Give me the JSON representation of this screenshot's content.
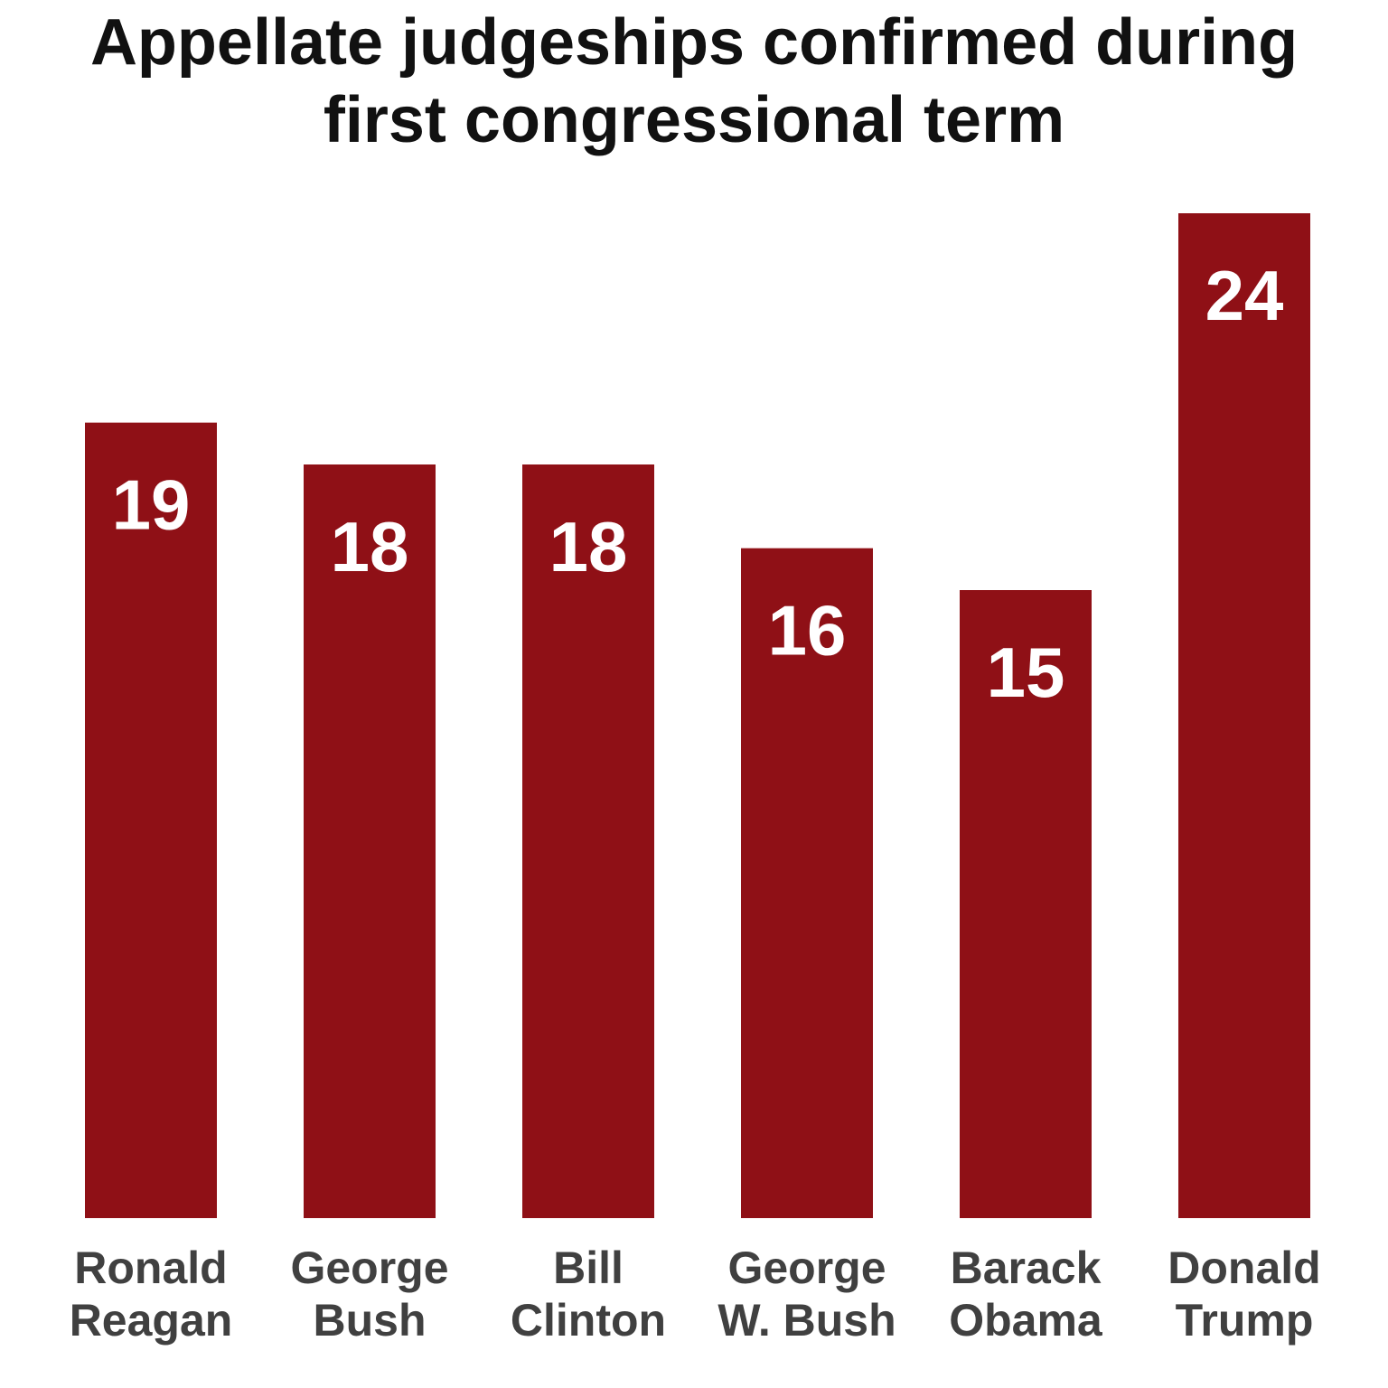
{
  "chart_data": {
    "type": "bar",
    "title_lines": [
      "Appellate judgeships confirmed during",
      "first congressional term"
    ],
    "categories": [
      [
        "Ronald",
        "Reagan"
      ],
      [
        "George",
        "Bush"
      ],
      [
        "Bill",
        "Clinton"
      ],
      [
        "George",
        "W. Bush"
      ],
      [
        "Barack",
        "Obama"
      ],
      [
        "Donald",
        "Trump"
      ]
    ],
    "values": [
      19,
      18,
      18,
      16,
      15,
      24
    ],
    "ylim": [
      0,
      24
    ],
    "grid": false,
    "bar_color": "#8f1016",
    "value_label_color": "#ffffff",
    "category_label_color": "#404040"
  }
}
